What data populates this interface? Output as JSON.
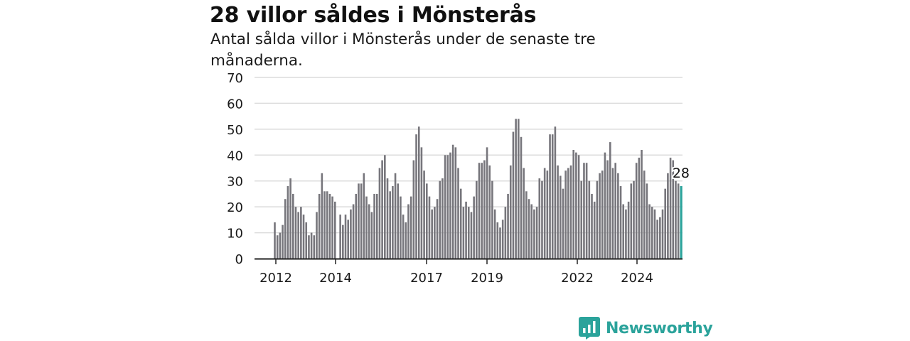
{
  "header": {
    "title": "28 villor såldes i Mönsterås",
    "subtitle": "Antal sålda villor i Mönsterås under de senaste tre månaderna."
  },
  "brand": {
    "name": "Newsworthy",
    "icon": "newsworthy-chart-bubble-icon"
  },
  "colors": {
    "bar": "#77767c",
    "highlight": "#2ba39b",
    "grid": "#dcdcdc",
    "axis": "#222222",
    "text": "#1a1a1a"
  },
  "chart_data": {
    "type": "bar",
    "title": "28 villor såldes i Mönsterås",
    "xlabel": "",
    "ylabel": "",
    "ylim": [
      0,
      70
    ],
    "yticks": [
      0,
      10,
      20,
      30,
      40,
      50,
      60,
      70
    ],
    "xticks": [
      "2012",
      "2014",
      "2017",
      "2019",
      "2022",
      "2024"
    ],
    "grid": true,
    "legend": "none",
    "highlight": {
      "label": "28",
      "value": 28,
      "position": "last"
    },
    "values": [
      14,
      9,
      10,
      13,
      23,
      28,
      31,
      25,
      20,
      18,
      20,
      17,
      14,
      9,
      10,
      9,
      18,
      25,
      33,
      26,
      26,
      25,
      24,
      22,
      0,
      17,
      13,
      17,
      15,
      19,
      21,
      25,
      29,
      29,
      33,
      24,
      21,
      18,
      25,
      25,
      35,
      38,
      40,
      31,
      26,
      28,
      33,
      29,
      24,
      17,
      14,
      21,
      24,
      38,
      48,
      51,
      43,
      34,
      29,
      24,
      19,
      20,
      23,
      30,
      31,
      40,
      40,
      41,
      44,
      43,
      35,
      27,
      20,
      22,
      20,
      18,
      24,
      30,
      37,
      37,
      38,
      43,
      36,
      30,
      19,
      14,
      12,
      15,
      20,
      25,
      36,
      49,
      54,
      54,
      47,
      35,
      26,
      23,
      21,
      19,
      20,
      31,
      30,
      35,
      34,
      48,
      48,
      51,
      36,
      32,
      27,
      34,
      35,
      36,
      42,
      41,
      40,
      30,
      37,
      37,
      30,
      25,
      22,
      30,
      33,
      34,
      41,
      38,
      45,
      35,
      37,
      33,
      28,
      21,
      19,
      22,
      29,
      30,
      37,
      39,
      42,
      34,
      29,
      21,
      20,
      19,
      15,
      16,
      19,
      27,
      33,
      39,
      38,
      30,
      29,
      28
    ]
  }
}
